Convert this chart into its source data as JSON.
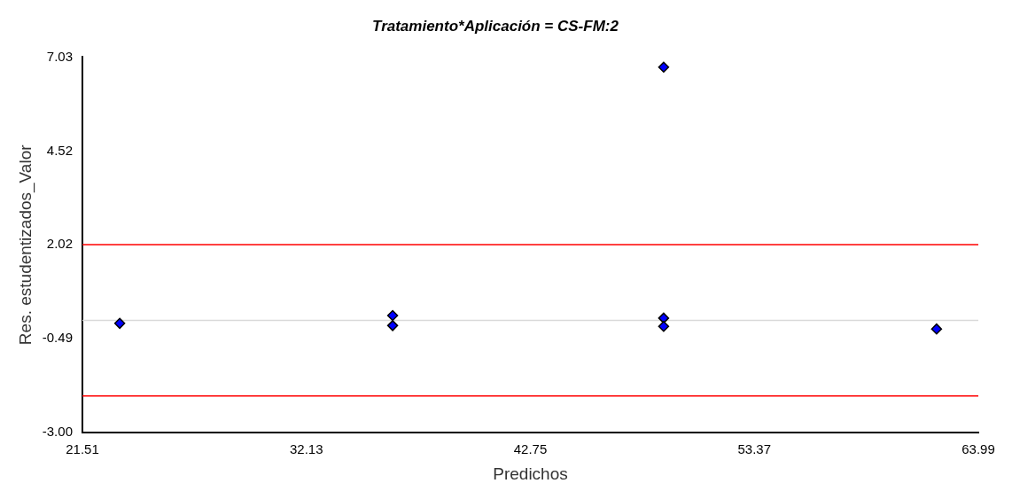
{
  "chart_data": {
    "type": "scatter",
    "title": "Tratamiento*Aplicación = CS-FM:2",
    "xlabel": "Predichos",
    "ylabel": "Res. estudentizados_Valor",
    "x": [
      23.28,
      36.22,
      36.22,
      49.07,
      49.07,
      49.07,
      62.01
    ],
    "series": [
      {
        "color": "#0000ff",
        "values": [
          -0.08,
          0.13,
          -0.14,
          6.76,
          0.06,
          -0.16,
          -0.23
        ]
      }
    ],
    "xlim": [
      21.51,
      63.99
    ],
    "xticks": [
      21.51,
      32.13,
      42.75,
      53.37,
      63.99
    ],
    "ylim": [
      -3.0,
      7.03
    ],
    "yticks": [
      {
        "value": -3.0,
        "label": "-3.00"
      },
      -0.49,
      2.02,
      4.52,
      7.03
    ],
    "ref_lines": [
      {
        "axis": "y",
        "value": 2.02,
        "color": "#ff0000"
      },
      {
        "axis": "y",
        "value": -2.02,
        "color": "#ff0000"
      },
      {
        "axis": "y",
        "value": 0,
        "color": "#d9d9d9"
      }
    ],
    "grid": false,
    "legend": false,
    "marker": "diamond"
  }
}
